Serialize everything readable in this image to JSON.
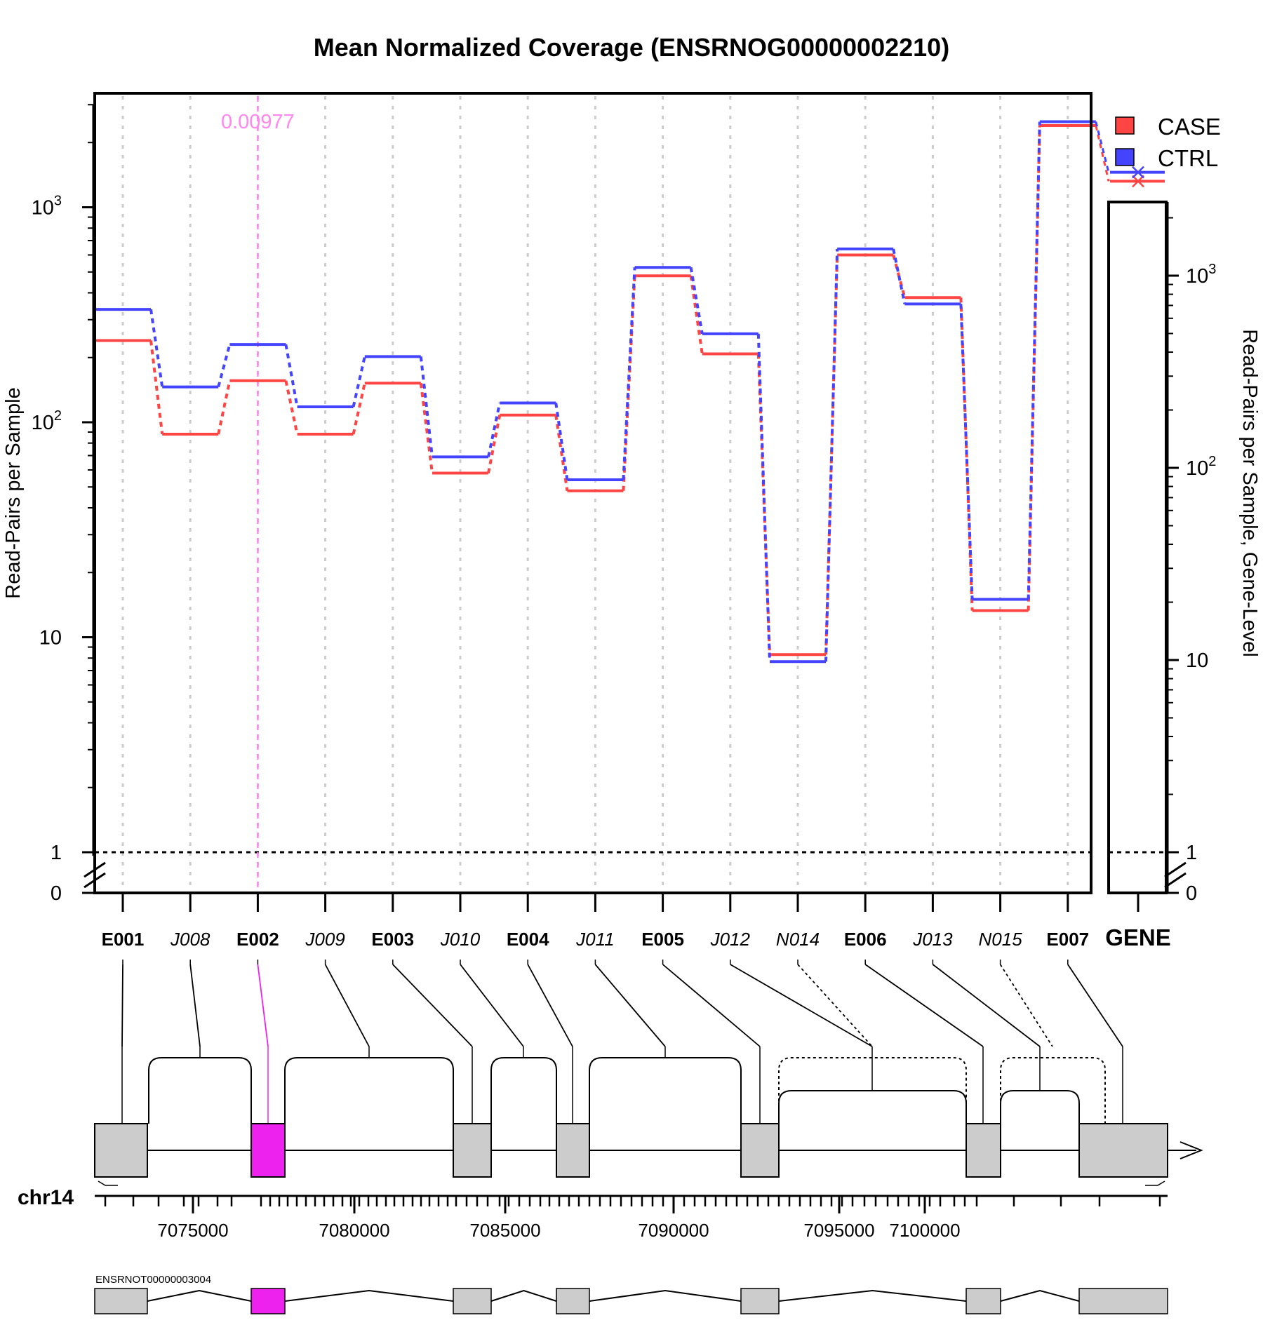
{
  "chart_data": {
    "type": "line",
    "title": "Mean Normalized Coverage (ENSRNOG00000002210)",
    "ylabel": "Read-Pairs per Sample",
    "ylabel_right": "Read-Pairs per Sample, Gene-Level",
    "y_scale": "log",
    "y_ticks": [
      "1",
      "10",
      "10^2",
      "10^3"
    ],
    "y_zero_label": "0",
    "highlight": {
      "feature": "E002",
      "label": "0.00977",
      "color": "#ff88ee"
    },
    "features": [
      {
        "id": "E001",
        "style": "bold"
      },
      {
        "id": "J008",
        "style": "italic"
      },
      {
        "id": "E002",
        "style": "bold"
      },
      {
        "id": "J009",
        "style": "italic"
      },
      {
        "id": "E003",
        "style": "bold"
      },
      {
        "id": "J010",
        "style": "italic"
      },
      {
        "id": "E004",
        "style": "bold"
      },
      {
        "id": "J011",
        "style": "italic"
      },
      {
        "id": "E005",
        "style": "bold"
      },
      {
        "id": "J012",
        "style": "italic"
      },
      {
        "id": "N014",
        "style": "italic"
      },
      {
        "id": "E006",
        "style": "bold"
      },
      {
        "id": "J013",
        "style": "italic"
      },
      {
        "id": "N015",
        "style": "italic"
      },
      {
        "id": "E007",
        "style": "bold"
      }
    ],
    "series": [
      {
        "name": "CASE",
        "color": "#ff4444",
        "values": [
          240,
          88,
          156,
          88,
          152,
          58,
          108,
          48,
          480,
          208,
          8.3,
          600,
          380,
          13.3,
          2400
        ]
      },
      {
        "name": "CTRL",
        "color": "#4444ff",
        "values": [
          335,
          146,
          230,
          118,
          202,
          69,
          123,
          54,
          525,
          258,
          7.7,
          640,
          355,
          15,
          2500
        ]
      }
    ],
    "gene_level": {
      "label": "GENE",
      "y_ticks": [
        "1",
        "10",
        "10^2",
        "10^3"
      ],
      "y_zero_label": "0",
      "CASE": 3100,
      "CTRL": 3450
    },
    "legend": {
      "position": "top-right",
      "entries": [
        "CASE",
        "CTRL"
      ]
    },
    "genome": {
      "chromosome": "chr14",
      "tick_labels": [
        "7075000",
        "7080000",
        "7085000",
        "7090000",
        "7095000",
        "7100000"
      ],
      "transcript": "ENSRNOT00000003004"
    }
  }
}
